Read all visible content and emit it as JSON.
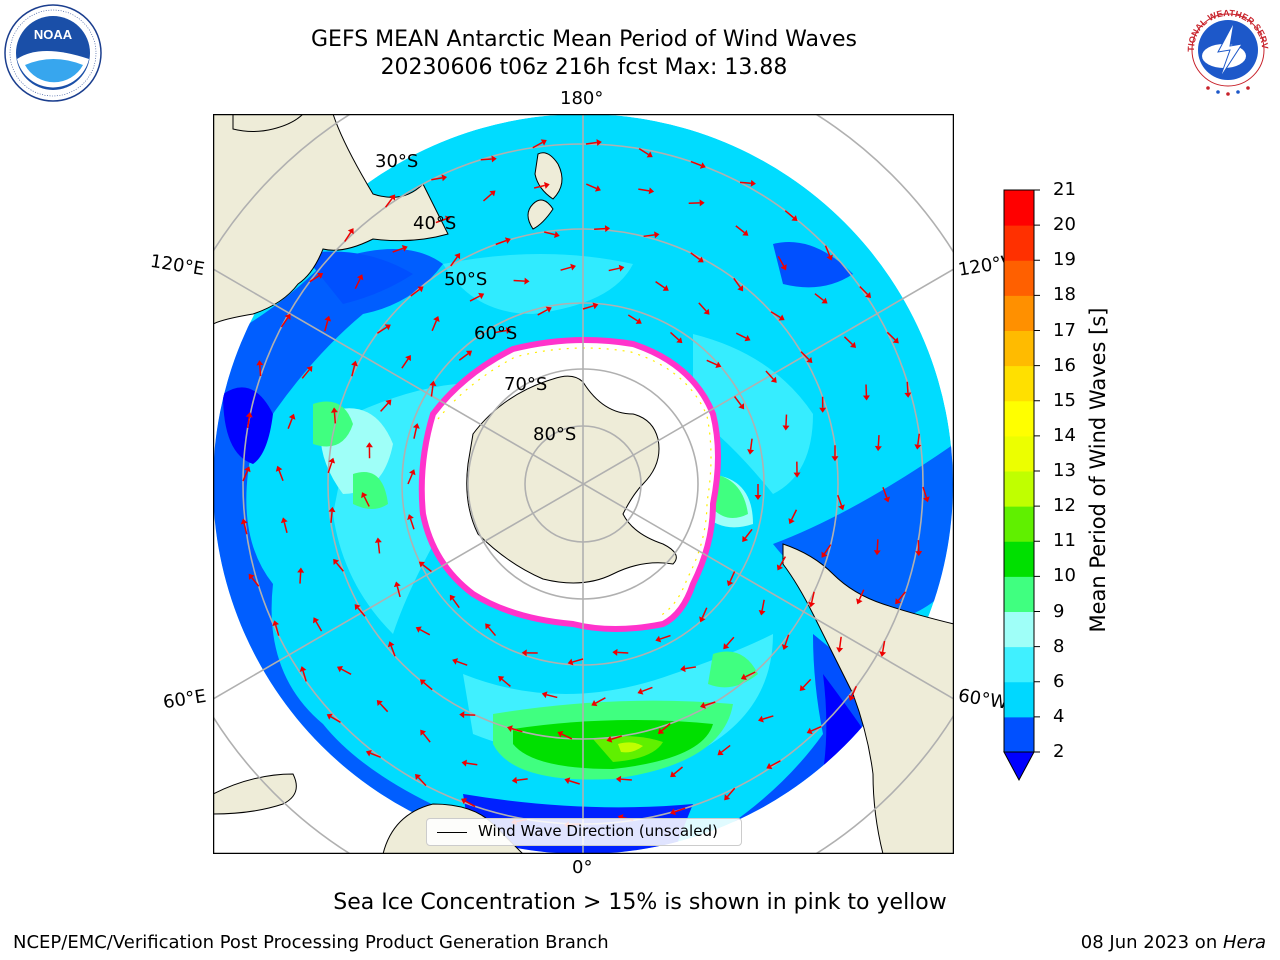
{
  "header": {
    "title": "GEFS MEAN Antarctic Mean Period of Wind Waves",
    "subtitle": "20230606 t06z 216h fcst   Max: 13.88"
  },
  "logos": {
    "left": "NOAA",
    "right": "NATIONAL WEATHER SERVICE"
  },
  "map": {
    "projection": "south polar stereographic",
    "longitude_labels": {
      "top": "180°",
      "bottom": "0°",
      "upper_left": "120°E",
      "upper_right": "120°W",
      "lower_left": "60°E",
      "lower_right": "60°W"
    },
    "latitude_labels": [
      "30°S",
      "40°S",
      "50°S",
      "60°S",
      "70°S",
      "80°S"
    ],
    "legend_entry": "Wind Wave Direction (unscaled)",
    "colors": {
      "land": "#eeecd8",
      "ice": "#ffffff",
      "ice_edge": "#ff33cc",
      "arrows": "#ee0000",
      "gridlines": "#b0b0b0"
    }
  },
  "colorbar": {
    "label": "Mean Period of Wind Waves [s]",
    "ticks": [
      "2",
      "4",
      "6",
      "8",
      "9",
      "10",
      "11",
      "12",
      "13",
      "14",
      "15",
      "16",
      "17",
      "18",
      "19",
      "20",
      "21"
    ],
    "bands": [
      "#0050ff",
      "#00d8ff",
      "#40f0ff",
      "#9ffff8",
      "#40ff80",
      "#00e000",
      "#60f000",
      "#c0ff00",
      "#ecff00",
      "#ffff00",
      "#ffe000",
      "#ffbb00",
      "#ff9000",
      "#ff6000",
      "#ff3000",
      "#ff0000"
    ],
    "extend_min_color": "#0000ff"
  },
  "note": "Sea Ice Concentration > 15% is shown in pink to yellow",
  "footer": {
    "left": "NCEP/EMC/Verification Post Processing Product Generation Branch",
    "right_date": "08 Jun 2023 on ",
    "right_system": "Hera"
  }
}
